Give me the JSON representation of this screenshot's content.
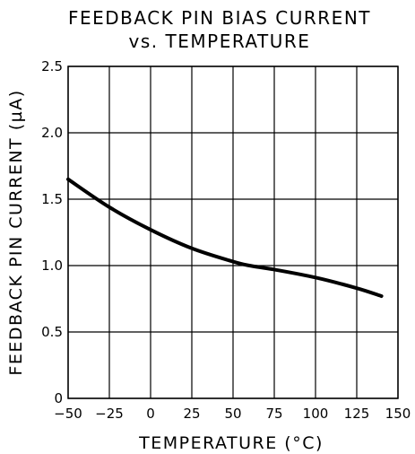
{
  "chart_data": {
    "type": "line",
    "title": "FEEDBACK PIN BIAS CURRENT",
    "subtitle": "vs. TEMPERATURE",
    "xlabel": "TEMPERATURE (°C)",
    "ylabel": "FEEDBACK PIN CURRENT (µA)",
    "xlim": [
      -50,
      150
    ],
    "ylim": [
      0,
      2.5
    ],
    "x_ticks": [
      "−50",
      "−25",
      "0",
      "25",
      "50",
      "75",
      "100",
      "125",
      "150"
    ],
    "y_ticks": [
      "0",
      "0.5",
      "1.0",
      "1.5",
      "2.0",
      "2.5"
    ],
    "grid": true,
    "series": [
      {
        "x": [
          -50,
          -25,
          0,
          25,
          50,
          60,
          75,
          100,
          125,
          140
        ],
        "y": [
          1.65,
          1.44,
          1.27,
          1.13,
          1.03,
          1.0,
          0.97,
          0.91,
          0.83,
          0.77
        ]
      }
    ]
  }
}
